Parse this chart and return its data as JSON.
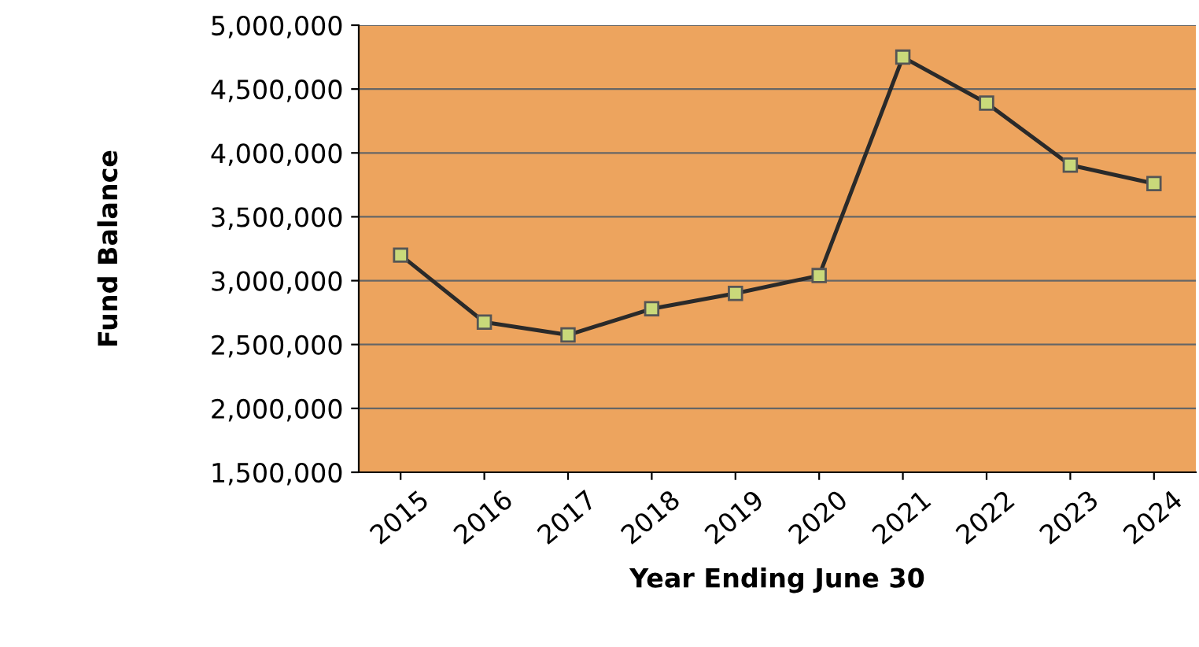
{
  "chart_data": {
    "type": "line",
    "xlabel": "Year Ending June 30",
    "ylabel": "Fund Balance",
    "categories": [
      "2015",
      "2016",
      "2017",
      "2018",
      "2019",
      "2020",
      "2021",
      "2022",
      "2023",
      "2024"
    ],
    "series": [
      {
        "color": "#2a2a2a",
        "values": [
          3200000,
          2675000,
          2575000,
          2780000,
          2900000,
          3040000,
          4750000,
          4390000,
          3905000,
          3760000
        ]
      }
    ],
    "ylim": [
      1500000,
      5000000
    ],
    "yticks": [
      {
        "value": 1500000,
        "label": "1,500,000"
      },
      {
        "value": 2000000,
        "label": "2,000,000"
      },
      {
        "value": 2500000,
        "label": "2,500,000"
      },
      {
        "value": 3000000,
        "label": "3,000,000"
      },
      {
        "value": 3500000,
        "label": "3,500,000"
      },
      {
        "value": 4000000,
        "label": "4,000,000"
      },
      {
        "value": 4500000,
        "label": "4,500,000"
      },
      {
        "value": 5000000,
        "label": "5,000,000"
      }
    ],
    "grid": "y",
    "marker": "square",
    "line_style": "solid",
    "legend": false
  }
}
